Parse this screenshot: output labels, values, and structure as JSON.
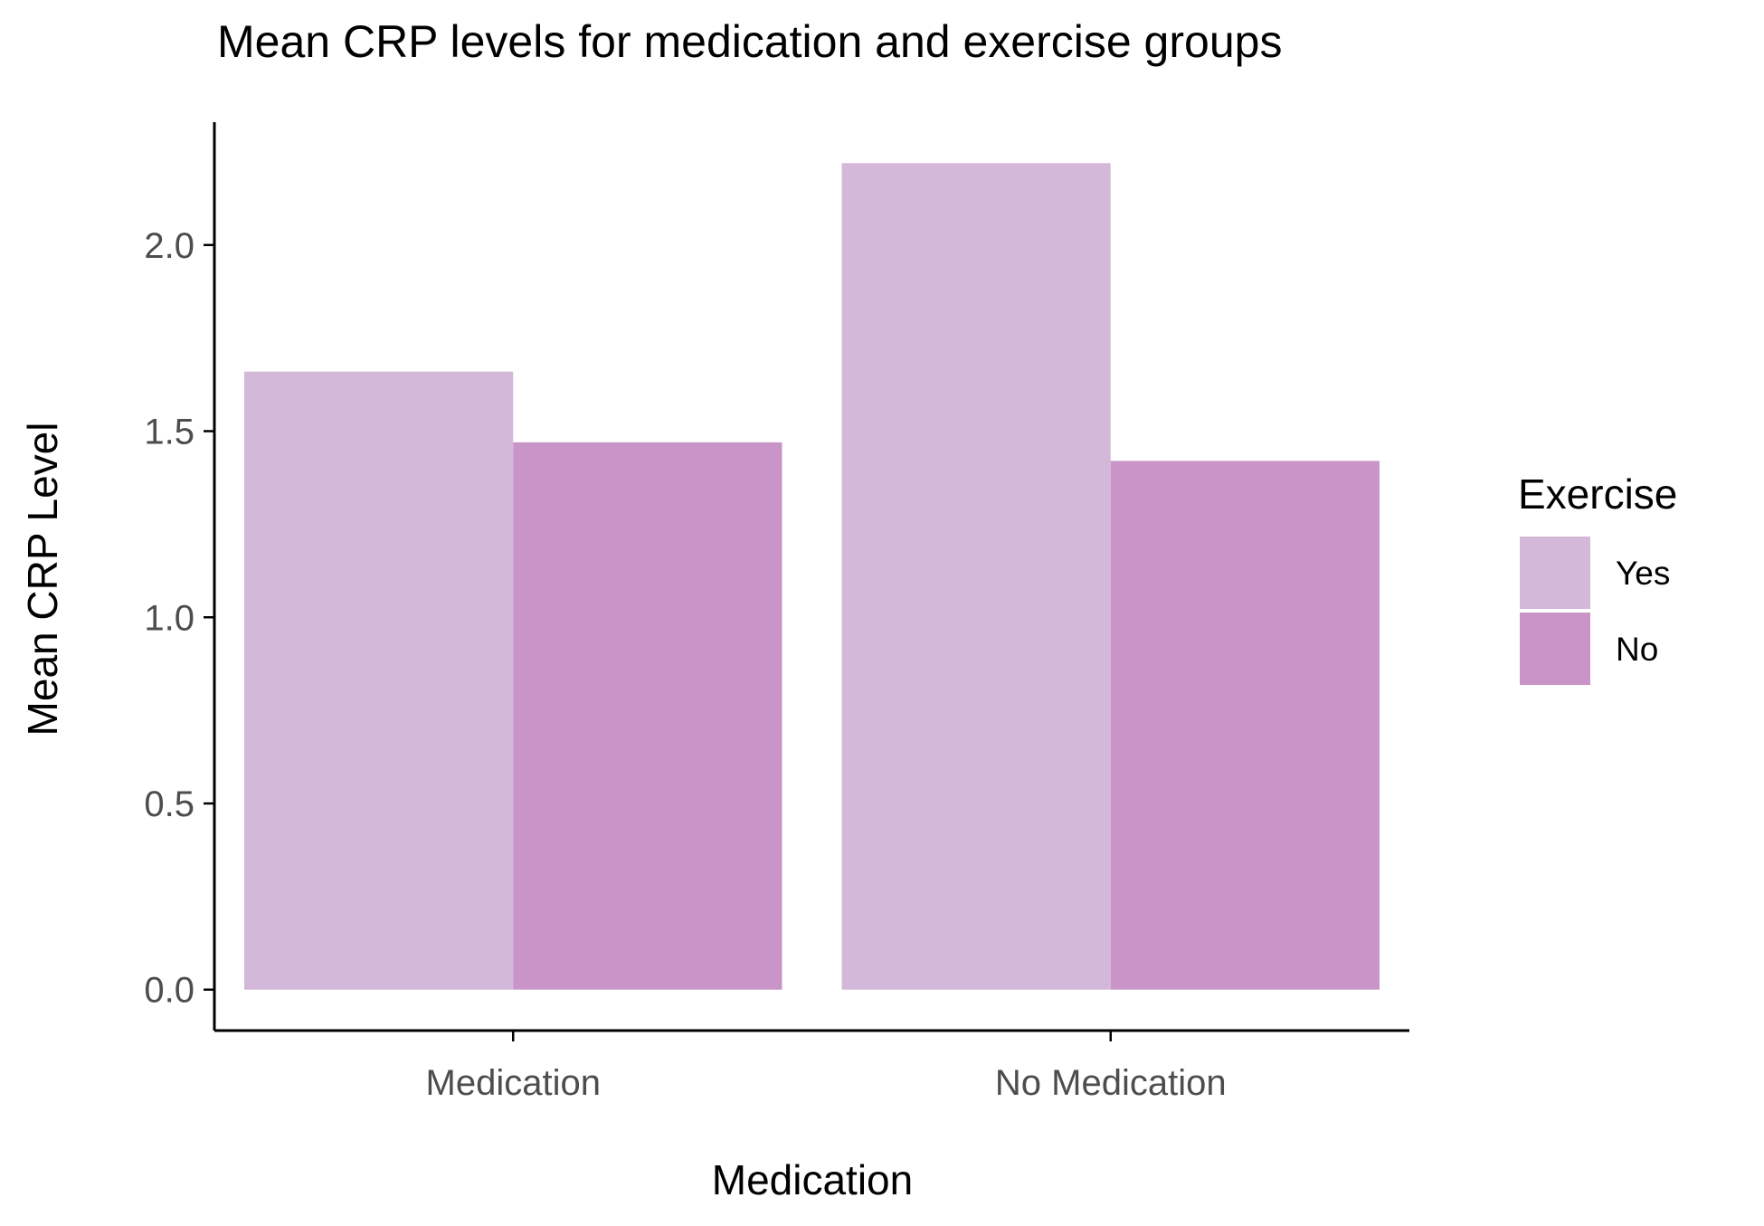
{
  "chart_data": {
    "type": "bar",
    "title": "Mean CRP levels for medication and exercise groups",
    "xlabel": "Medication",
    "ylabel": "Mean CRP Level",
    "categories": [
      "Medication",
      "No Medication"
    ],
    "series": [
      {
        "name": "Yes",
        "values": [
          1.66,
          2.22
        ],
        "color": "#d4b8da"
      },
      {
        "name": "No",
        "values": [
          1.47,
          1.42
        ],
        "color": "#c994c7"
      }
    ],
    "yticks": [
      0.0,
      0.5,
      1.0,
      1.5,
      2.0
    ],
    "ytick_labels": [
      "0.0",
      "0.5",
      "1.0",
      "1.5",
      "2.0"
    ],
    "ylim": [
      -0.11,
      2.33
    ],
    "grid": false,
    "legend": {
      "title": "Exercise",
      "placement": "right"
    }
  }
}
